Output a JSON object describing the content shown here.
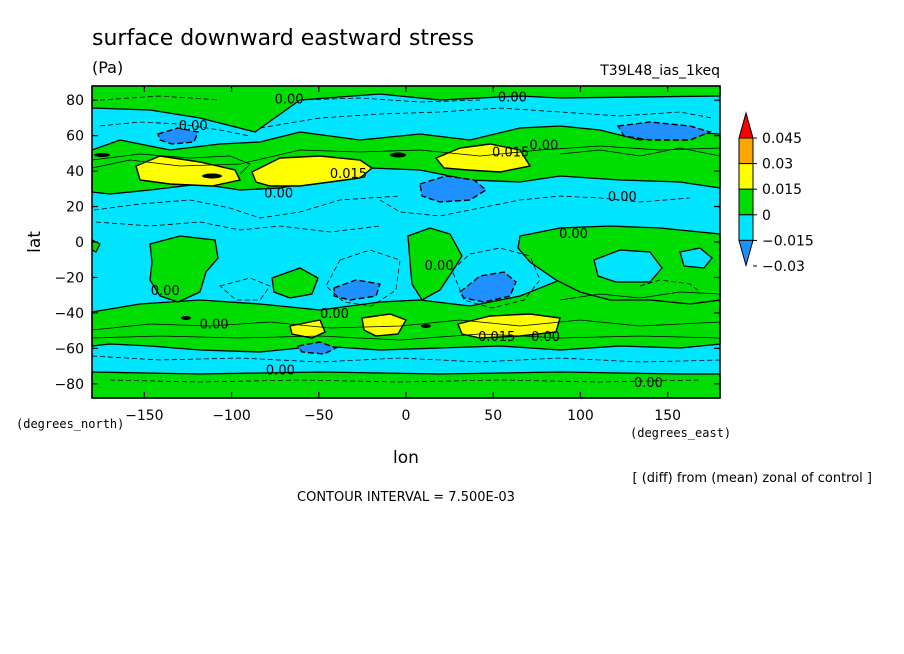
{
  "chart_data": {
    "type": "heatmap",
    "title": "surface downward eastward stress",
    "units": "(Pa)",
    "run_label": "T39L48_ias_1keq",
    "xlabel": "lon",
    "ylabel": "lat",
    "xunits": "(degrees_east)",
    "yunits": "(degrees_north)",
    "xlim": [
      -180,
      180
    ],
    "ylim": [
      -88,
      88
    ],
    "x_ticks": [
      -150,
      -100,
      -50,
      0,
      50,
      100,
      150
    ],
    "x_tick_labels": [
      "−150",
      "−100",
      "−50",
      "0",
      "50",
      "100",
      "150"
    ],
    "y_ticks": [
      80,
      60,
      40,
      20,
      0,
      -20,
      -40,
      -60,
      -80
    ],
    "y_tick_labels": [
      "80",
      "60",
      "40",
      "20",
      "0",
      "−20",
      "−40",
      "−60",
      "−80"
    ],
    "contour_interval_text": "CONTOUR INTERVAL = 7.500E-03",
    "note": "[ (diff) from (mean) zonal of control ]",
    "colorbar": {
      "levels": [
        -0.03,
        -0.015,
        0,
        0.015,
        0.03,
        0.045
      ],
      "labels": [
        "−0.03",
        "−0.015",
        "0",
        "0.015",
        "0.03",
        "0.045"
      ],
      "colors": [
        "#1e90ff",
        "#00e5ff",
        "#00dd00",
        "#ffff00",
        "#ffa500",
        "#ff0000"
      ]
    },
    "contour_labels": [
      {
        "text": "0.00",
        "lon": -67,
        "lat": 81
      },
      {
        "text": "0.00",
        "lon": 61,
        "lat": 82
      },
      {
        "text": "0.00",
        "lon": -122,
        "lat": 66
      },
      {
        "text": "0.00",
        "lon": 79,
        "lat": 55
      },
      {
        "text": "0.015",
        "lon": 60,
        "lat": 51
      },
      {
        "text": "0.015",
        "lon": -33,
        "lat": 39
      },
      {
        "text": "0.00",
        "lon": -73,
        "lat": 28
      },
      {
        "text": "0.00",
        "lon": 124,
        "lat": 26
      },
      {
        "text": "0.00",
        "lon": 96,
        "lat": 5
      },
      {
        "text": "0.00",
        "lon": 19,
        "lat": -13
      },
      {
        "text": "0.00",
        "lon": -138,
        "lat": -27
      },
      {
        "text": "0.00",
        "lon": -110,
        "lat": -46
      },
      {
        "text": "0.00",
        "lon": -41,
        "lat": -40
      },
      {
        "text": "0.015",
        "lon": 52,
        "lat": -53
      },
      {
        "text": "0.00",
        "lon": 80,
        "lat": -53
      },
      {
        "text": "0.00",
        "lon": -72,
        "lat": -72
      },
      {
        "text": "0.00",
        "lon": 139,
        "lat": -79
      }
    ]
  }
}
